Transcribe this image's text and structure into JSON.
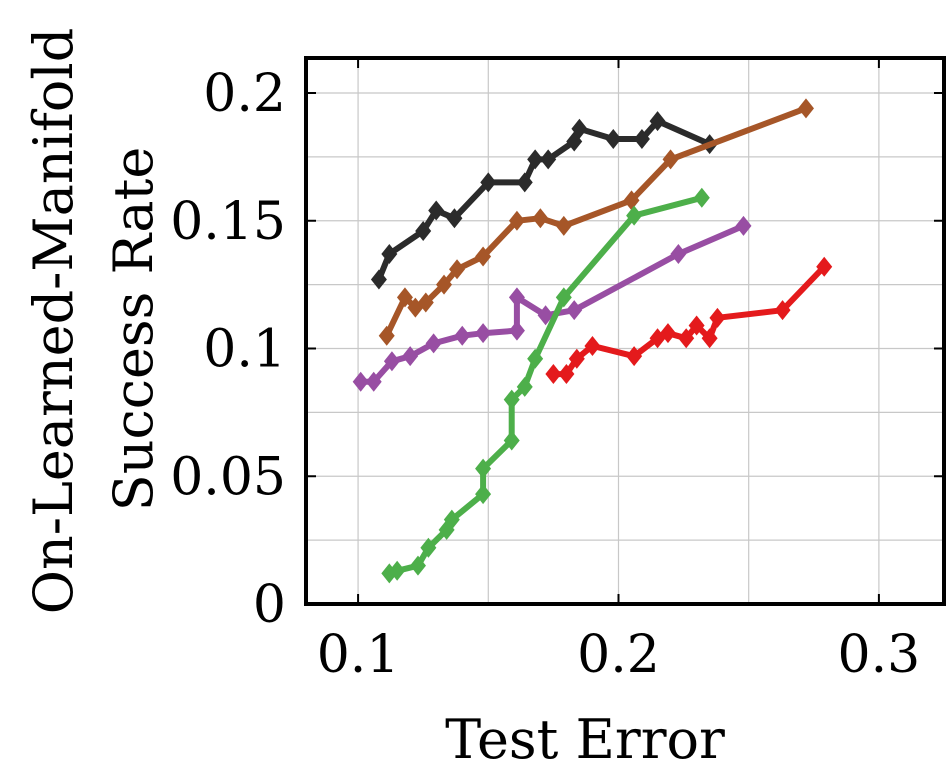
{
  "chart_data": {
    "type": "line",
    "title": "",
    "xlabel": "Test Error",
    "ylabel": [
      "On-Learned-Manifold",
      "Success Rate"
    ],
    "xlim": [
      0.08,
      0.325
    ],
    "ylim": [
      0.0,
      0.2137
    ],
    "x_ticks": [
      0.1,
      0.2,
      0.3
    ],
    "x_tick_labels": [
      "0.1",
      "0.2",
      "0.3"
    ],
    "y_ticks": [
      0,
      0.05,
      0.1,
      0.15,
      0.2
    ],
    "y_tick_labels": [
      "0",
      "0.05",
      "0.1",
      "0.15",
      "0.2"
    ],
    "grid": true,
    "marker": "diamond",
    "series": [
      {
        "color": "#2b2b2b",
        "points": [
          [
            0.108,
            0.127
          ],
          [
            0.112,
            0.137
          ],
          [
            0.125,
            0.146
          ],
          [
            0.13,
            0.154
          ],
          [
            0.137,
            0.151
          ],
          [
            0.15,
            0.165
          ],
          [
            0.164,
            0.165
          ],
          [
            0.168,
            0.174
          ],
          [
            0.173,
            0.174
          ],
          [
            0.183,
            0.181
          ],
          [
            0.185,
            0.186
          ],
          [
            0.198,
            0.182
          ],
          [
            0.209,
            0.182
          ],
          [
            0.215,
            0.189
          ],
          [
            0.235,
            0.18
          ]
        ]
      },
      {
        "color": "#a65628",
        "points": [
          [
            0.111,
            0.105
          ],
          [
            0.118,
            0.12
          ],
          [
            0.122,
            0.116
          ],
          [
            0.126,
            0.118
          ],
          [
            0.133,
            0.125
          ],
          [
            0.138,
            0.131
          ],
          [
            0.148,
            0.136
          ],
          [
            0.161,
            0.15
          ],
          [
            0.17,
            0.151
          ],
          [
            0.179,
            0.148
          ],
          [
            0.205,
            0.158
          ],
          [
            0.22,
            0.174
          ],
          [
            0.272,
            0.194
          ]
        ]
      },
      {
        "color": "#984ea3",
        "points": [
          [
            0.101,
            0.087
          ],
          [
            0.106,
            0.087
          ],
          [
            0.113,
            0.095
          ],
          [
            0.12,
            0.097
          ],
          [
            0.129,
            0.102
          ],
          [
            0.14,
            0.105
          ],
          [
            0.148,
            0.106
          ],
          [
            0.161,
            0.107
          ],
          [
            0.161,
            0.12
          ],
          [
            0.172,
            0.113
          ],
          [
            0.183,
            0.115
          ],
          [
            0.223,
            0.137
          ],
          [
            0.248,
            0.148
          ]
        ]
      },
      {
        "color": "#4daf4a",
        "points": [
          [
            0.112,
            0.012
          ],
          [
            0.115,
            0.013
          ],
          [
            0.123,
            0.015
          ],
          [
            0.127,
            0.022
          ],
          [
            0.134,
            0.029
          ],
          [
            0.136,
            0.033
          ],
          [
            0.148,
            0.043
          ],
          [
            0.148,
            0.053
          ],
          [
            0.159,
            0.064
          ],
          [
            0.159,
            0.08
          ],
          [
            0.164,
            0.085
          ],
          [
            0.168,
            0.096
          ],
          [
            0.179,
            0.12
          ],
          [
            0.206,
            0.152
          ],
          [
            0.232,
            0.159
          ]
        ]
      },
      {
        "color": "#e41a1c",
        "points": [
          [
            0.175,
            0.09
          ],
          [
            0.18,
            0.09
          ],
          [
            0.184,
            0.096
          ],
          [
            0.19,
            0.101
          ],
          [
            0.206,
            0.097
          ],
          [
            0.215,
            0.104
          ],
          [
            0.219,
            0.106
          ],
          [
            0.226,
            0.104
          ],
          [
            0.23,
            0.109
          ],
          [
            0.235,
            0.104
          ],
          [
            0.238,
            0.112
          ],
          [
            0.263,
            0.115
          ],
          [
            0.279,
            0.132
          ]
        ]
      }
    ]
  }
}
